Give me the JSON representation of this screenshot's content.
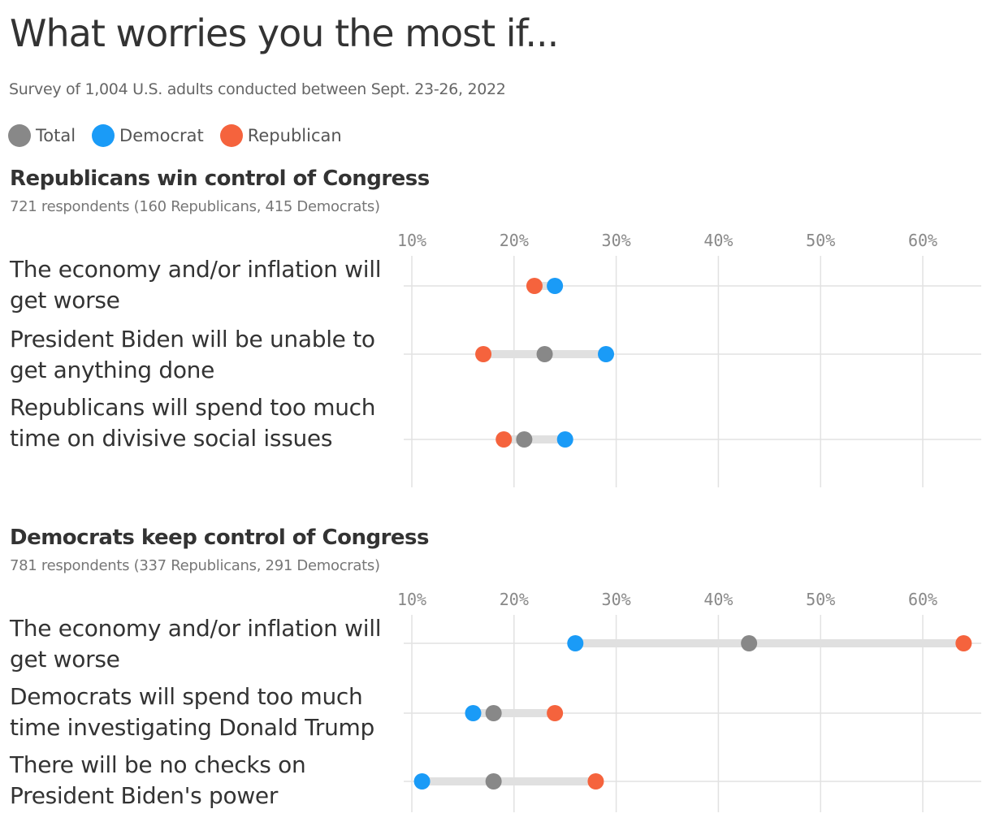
{
  "title": "What worries you the most if...",
  "subtitle": "Survey of 1,004 U.S. adults conducted between Sept. 23-26, 2022",
  "legend": [
    {
      "name": "Total",
      "color": "#888888"
    },
    {
      "name": "Democrat",
      "color": "#1a9bf7"
    },
    {
      "name": "Republican",
      "color": "#f5633d"
    }
  ],
  "chart_data": [
    {
      "type": "scatter",
      "title": "Republicans win control of Congress",
      "subtitle": "721 respondents (160 Republicans, 415 Democrats)",
      "x_ticks": [
        "10%",
        "20%",
        "30%",
        "40%",
        "50%",
        "60%"
      ],
      "xlim": [
        10,
        65
      ],
      "categories": [
        "The economy and/or inflation will get worse",
        "President Biden will be unable to get anything done",
        "Republicans will spend too much time on divisive social issues"
      ],
      "series": [
        {
          "name": "Total",
          "values": [
            null,
            23,
            21
          ]
        },
        {
          "name": "Democrat",
          "values": [
            24,
            29,
            25
          ]
        },
        {
          "name": "Republican",
          "values": [
            22,
            17,
            19
          ]
        }
      ]
    },
    {
      "type": "scatter",
      "title": "Democrats keep control of Congress",
      "subtitle": "781 respondents (337 Republicans, 291 Democrats)",
      "x_ticks": [
        "10%",
        "20%",
        "30%",
        "40%",
        "50%",
        "60%"
      ],
      "xlim": [
        10,
        65
      ],
      "categories": [
        "The economy and/or inflation will get worse",
        "Democrats will spend too much time investigating Donald Trump",
        "There will be no checks on President Biden's power"
      ],
      "series": [
        {
          "name": "Total",
          "values": [
            43,
            18,
            18
          ]
        },
        {
          "name": "Democrat",
          "values": [
            26,
            16,
            11
          ]
        },
        {
          "name": "Republican",
          "values": [
            64,
            24,
            28
          ]
        }
      ]
    }
  ]
}
